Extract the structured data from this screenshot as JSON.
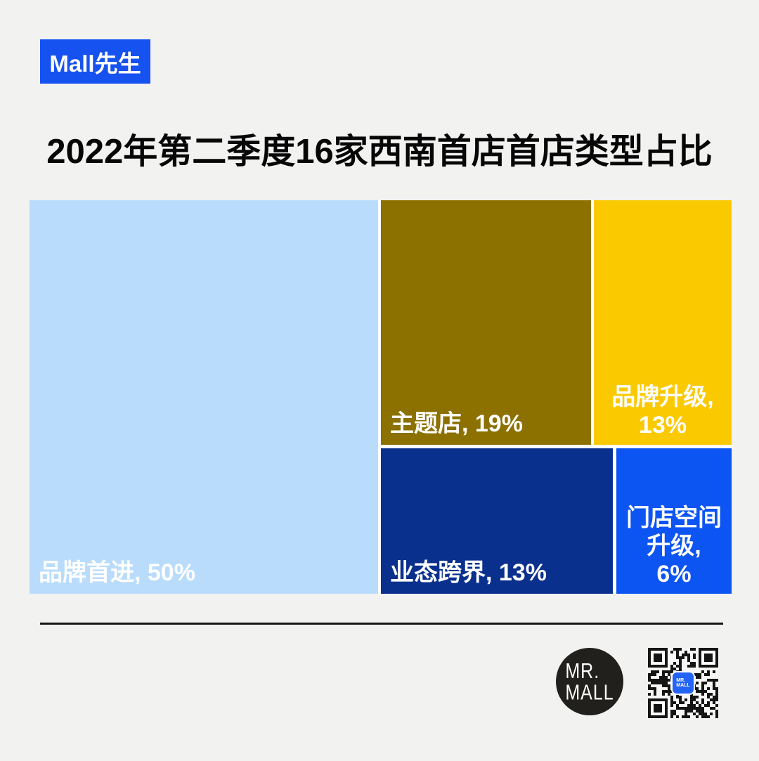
{
  "page": {
    "background": "#f2f2f1"
  },
  "header": {
    "badge_label": "Mall先生",
    "badge_color": "#1652f0",
    "title": "2022年第二季度16家西南首店首店类型占比"
  },
  "chart_data": {
    "type": "treemap",
    "title": "2022年第二季度16家西南首店首店类型占比",
    "unit": "%",
    "total_stores": 16,
    "legend": "none",
    "items": [
      {
        "label": "品牌首进",
        "value": 50,
        "display": "品牌首进, 50%",
        "lines": [
          "品牌首进, 50%"
        ],
        "color": "#b9dcfc",
        "text_color": "#ffffff"
      },
      {
        "label": "主题店",
        "value": 19,
        "display": "主题店, 19%",
        "lines": [
          "主题店, 19%"
        ],
        "color": "#8c7000",
        "text_color": "#ffffff"
      },
      {
        "label": "品牌升级",
        "value": 13,
        "display": "品牌升级, 13%",
        "lines": [
          "品牌升级,",
          "13%"
        ],
        "color": "#fbc900",
        "text_color": "#ffffff"
      },
      {
        "label": "业态跨界",
        "value": 13,
        "display": "业态跨界, 13%",
        "lines": [
          "业态跨界, 13%"
        ],
        "color": "#0a308e",
        "text_color": "#ffffff"
      },
      {
        "label": "门店空间升级",
        "value": 6,
        "display": "门店空间升级, 6%",
        "lines": [
          "门店空间",
          "升级,",
          "6%"
        ],
        "color": "#0d55f3",
        "text_color": "#ffffff"
      }
    ]
  },
  "footer": {
    "divider_color": "#161616",
    "logo": {
      "line1": "MR.",
      "line2": "MALL"
    },
    "qr_center": {
      "line1": "MR.",
      "line2": "MALL"
    }
  }
}
